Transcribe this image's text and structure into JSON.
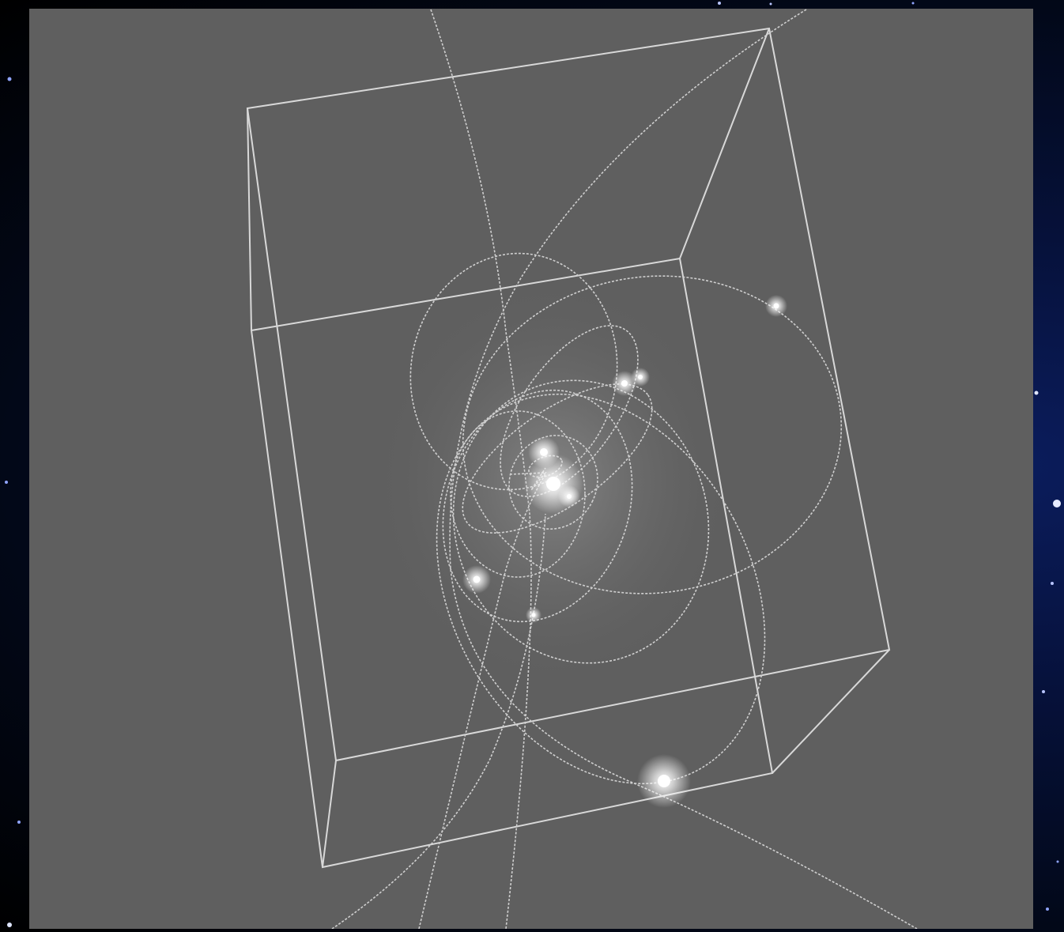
{
  "colors": {
    "panel_background": "#5f5f5f",
    "space_background": "#020818",
    "wire_color": "#d8d8d8",
    "orbit_color": "#cfcfcf",
    "star_color": "#ffffff"
  },
  "icons": [
    "star-glow",
    "orbit-ellipse",
    "bounding-cube-wireframe"
  ],
  "scene": {
    "cube_edges": 12,
    "orbit_count": 10,
    "star_count": 9
  }
}
